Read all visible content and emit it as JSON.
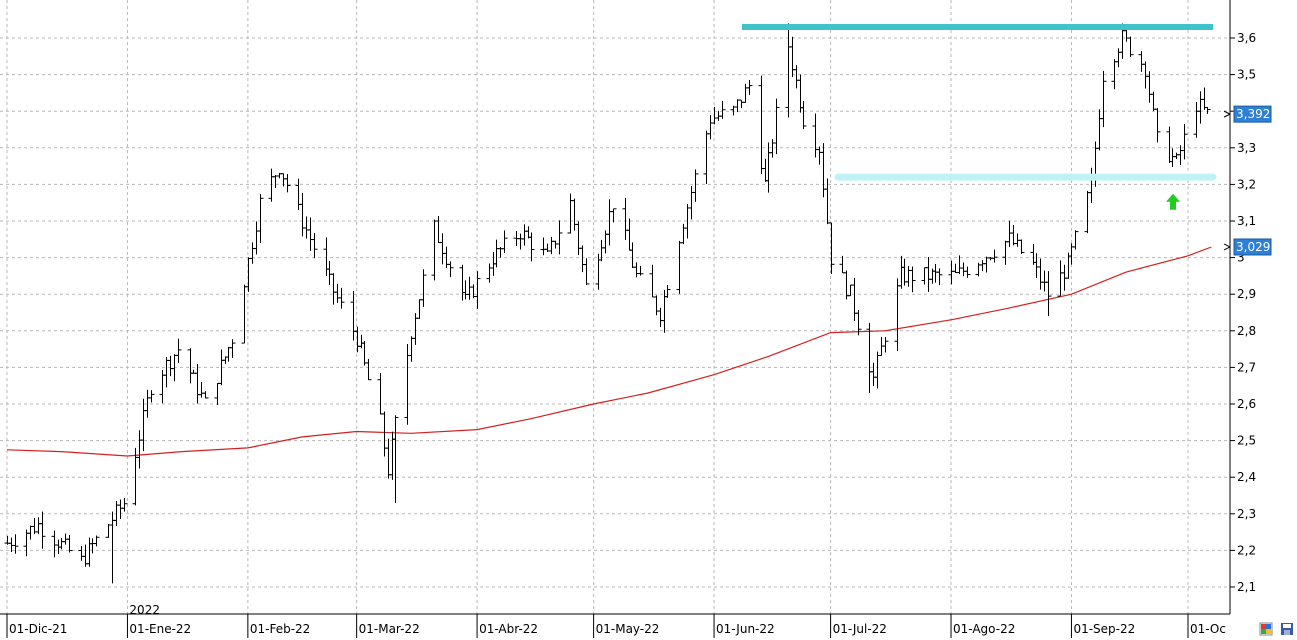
{
  "chart_data": {
    "type": "bar",
    "subtype": "ohlc-daily-with-moving-average",
    "y_axis": {
      "side": "right",
      "ylim": [
        2.03,
        3.68
      ],
      "ticks": [
        2.1,
        2.2,
        2.3,
        2.4,
        2.5,
        2.6,
        2.7,
        2.8,
        2.9,
        3.0,
        3.1,
        3.2,
        3.3,
        3.4,
        3.5,
        3.6
      ],
      "tick_labels": [
        "2,1",
        "2,2",
        "2,3",
        "2,4",
        "2,5",
        "2,6",
        "2,7",
        "2,8",
        "2,9",
        "3",
        "3,1",
        "3,2",
        "3,3",
        "3,4",
        "3,5",
        "3,6"
      ]
    },
    "x_axis": {
      "range": [
        "2021-12-01",
        "2022-10-07"
      ],
      "ticks": [
        {
          "date": "2021-12-01",
          "label": "01-Dic-21"
        },
        {
          "date": "2022-01-01",
          "label": "01-Ene-22"
        },
        {
          "date": "2022-02-01",
          "label": "01-Feb-22"
        },
        {
          "date": "2022-03-01",
          "label": "01-Mar-22"
        },
        {
          "date": "2022-04-01",
          "label": "01-Abr-22"
        },
        {
          "date": "2022-05-01",
          "label": "01-May-22"
        },
        {
          "date": "2022-06-01",
          "label": "01-Jun-22"
        },
        {
          "date": "2022-07-01",
          "label": "01-Jul-22"
        },
        {
          "date": "2022-08-01",
          "label": "01-Ago-22"
        },
        {
          "date": "2022-09-01",
          "label": "01-Sep-22"
        },
        {
          "date": "2022-10-01",
          "label": "01-Oc"
        }
      ],
      "year_marker": {
        "date": "2022-01-01",
        "label": "2022"
      }
    },
    "grid": true,
    "price_keypoints": [
      [
        "2021-12-01",
        2.22
      ],
      [
        "2021-12-09",
        2.27
      ],
      [
        "2021-12-20",
        2.17
      ],
      [
        "2021-12-31",
        2.33
      ],
      [
        "2022-01-07",
        2.65
      ],
      [
        "2022-01-14",
        2.75
      ],
      [
        "2022-01-21",
        2.6
      ],
      [
        "2022-01-28",
        2.78
      ],
      [
        "2022-02-04",
        3.15
      ],
      [
        "2022-02-09",
        3.25
      ],
      [
        "2022-02-15",
        3.1
      ],
      [
        "2022-02-22",
        2.93
      ],
      [
        "2022-03-01",
        2.78
      ],
      [
        "2022-03-07",
        2.55
      ],
      [
        "2022-03-09",
        2.42
      ],
      [
        "2022-03-15",
        2.8
      ],
      [
        "2022-03-21",
        3.08
      ],
      [
        "2022-03-29",
        2.88
      ],
      [
        "2022-04-05",
        3.0
      ],
      [
        "2022-04-12",
        3.07
      ],
      [
        "2022-04-19",
        3.0
      ],
      [
        "2022-04-25",
        3.15
      ],
      [
        "2022-04-29",
        2.92
      ],
      [
        "2022-05-06",
        3.15
      ],
      [
        "2022-05-12",
        2.95
      ],
      [
        "2022-05-18",
        2.85
      ],
      [
        "2022-05-24",
        3.1
      ],
      [
        "2022-05-31",
        3.38
      ],
      [
        "2022-06-06",
        3.4
      ],
      [
        "2022-06-10",
        3.47
      ],
      [
        "2022-06-14",
        3.2
      ],
      [
        "2022-06-20",
        3.58
      ],
      [
        "2022-06-24",
        3.38
      ],
      [
        "2022-06-28",
        3.3
      ],
      [
        "2022-07-01",
        3.0
      ],
      [
        "2022-07-06",
        2.9
      ],
      [
        "2022-07-12",
        2.67
      ],
      [
        "2022-07-19",
        2.95
      ],
      [
        "2022-07-26",
        2.95
      ],
      [
        "2022-08-02",
        2.95
      ],
      [
        "2022-08-09",
        3.0
      ],
      [
        "2022-08-16",
        3.05
      ],
      [
        "2022-08-22",
        2.98
      ],
      [
        "2022-08-26",
        2.9
      ],
      [
        "2022-08-31",
        2.98
      ],
      [
        "2022-09-02",
        3.05
      ],
      [
        "2022-09-06",
        3.2
      ],
      [
        "2022-09-09",
        3.5
      ],
      [
        "2022-09-14",
        3.6
      ],
      [
        "2022-09-20",
        3.52
      ],
      [
        "2022-09-23",
        3.32
      ],
      [
        "2022-09-28",
        3.26
      ],
      [
        "2022-10-03",
        3.42
      ],
      [
        "2022-10-06",
        3.392
      ]
    ],
    "bar_spikes": [
      [
        "2021-12-28",
        2.11,
        "low"
      ],
      [
        "2022-03-11",
        2.33,
        "low"
      ],
      [
        "2022-06-20",
        3.64,
        "high"
      ],
      [
        "2022-07-11",
        2.63,
        "low"
      ],
      [
        "2022-09-17",
        3.64,
        "high"
      ],
      [
        "2022-08-26",
        2.84,
        "low"
      ]
    ],
    "series": [
      {
        "name": "",
        "color": "#d42020",
        "points": [
          [
            "2021-12-01",
            2.475
          ],
          [
            "2021-12-15",
            2.47
          ],
          [
            "2022-01-01",
            2.458
          ],
          [
            "2022-01-15",
            2.47
          ],
          [
            "2022-02-01",
            2.48
          ],
          [
            "2022-02-15",
            2.51
          ],
          [
            "2022-03-01",
            2.525
          ],
          [
            "2022-03-15",
            2.52
          ],
          [
            "2022-04-01",
            2.53
          ],
          [
            "2022-04-15",
            2.56
          ],
          [
            "2022-05-01",
            2.6
          ],
          [
            "2022-05-15",
            2.63
          ],
          [
            "2022-06-01",
            2.68
          ],
          [
            "2022-06-15",
            2.73
          ],
          [
            "2022-07-01",
            2.795
          ],
          [
            "2022-07-15",
            2.8
          ],
          [
            "2022-08-01",
            2.83
          ],
          [
            "2022-08-15",
            2.86
          ],
          [
            "2022-09-01",
            2.9
          ],
          [
            "2022-09-15",
            2.96
          ],
          [
            "2022-10-01",
            3.005
          ],
          [
            "2022-10-07",
            3.029
          ]
        ]
      }
    ],
    "resistance_line": {
      "color": "#3ec4c8",
      "from": "2022-06-01",
      "to": "2022-10-07",
      "value": 3.63
    },
    "support_line": {
      "color": "#bff2f5",
      "from": "2022-07-01",
      "to": "2022-10-07",
      "value": 3.22
    },
    "price_badges": [
      {
        "value": 3.392,
        "label": "3,392",
        "color": "#2e7fd6"
      },
      {
        "value": 3.029,
        "label": "3,029",
        "color": "#2e7fd6"
      }
    ],
    "arrow": {
      "date": "2022-09-26",
      "value": 3.15,
      "color": "#22cc22",
      "direction": "up"
    }
  },
  "icons": {
    "left_icon": "palette-icon",
    "right_icon": "save-disk-icon"
  }
}
